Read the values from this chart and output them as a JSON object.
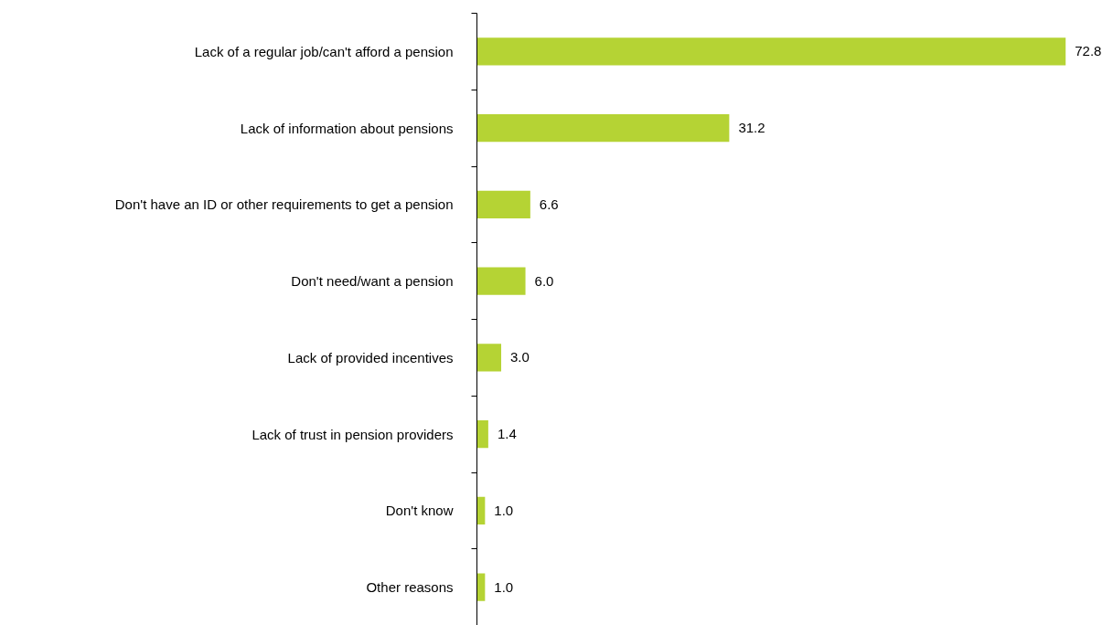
{
  "chart_data": {
    "type": "bar",
    "orientation": "horizontal",
    "categories": [
      "Lack of a regular job/can't afford a pension",
      "Lack of information about pensions",
      "Don't have an ID or other requirements to get a pension",
      "Don't need/want a pension",
      "Lack of provided incentives",
      "Lack of trust in pension providers",
      "Don't know",
      "Other reasons"
    ],
    "values": [
      72.8,
      31.2,
      6.6,
      6.0,
      3.0,
      1.4,
      1.0,
      1.0
    ],
    "value_labels": [
      "72.8",
      "31.2",
      "6.6",
      "6.0",
      "3.0",
      "1.4",
      "1.0",
      "1.0"
    ],
    "color": "#b5d334",
    "grid": false
  }
}
